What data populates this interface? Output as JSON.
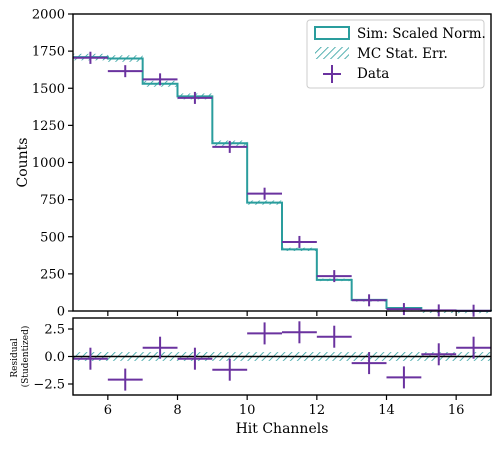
{
  "colors": {
    "sim": "#2a9d9d",
    "data": "#6a329f",
    "axis": "#000000",
    "background": "#ffffff"
  },
  "chart_data": [
    {
      "type": "histogram",
      "panel": "main",
      "ylabel": "Counts",
      "xlim": [
        5,
        17
      ],
      "ylim": [
        0,
        2000
      ],
      "y_ticks": [
        0,
        250,
        500,
        750,
        1000,
        1250,
        1500,
        1750,
        2000
      ],
      "legend_position": "top-right",
      "legend": [
        "Sim: Scaled Norm.",
        "MC Stat. Err.",
        "Data"
      ],
      "bin_edges": [
        5,
        6,
        7,
        8,
        9,
        10,
        11,
        12,
        13,
        14,
        15,
        16,
        17
      ],
      "series": [
        {
          "name": "Sim: Scaled Norm.",
          "style": "step",
          "values": [
            1710,
            1700,
            1530,
            1445,
            1130,
            730,
            415,
            210,
            75,
            20,
            3,
            1
          ],
          "mc_stat_err": [
            22,
            22,
            20,
            20,
            18,
            14,
            11,
            8,
            5,
            3,
            1,
            1
          ]
        },
        {
          "name": "Data",
          "style": "errorbar",
          "x": [
            5.5,
            6.5,
            7.5,
            8.5,
            9.5,
            10.5,
            11.5,
            12.5,
            13.5,
            14.5,
            15.5,
            16.5
          ],
          "y": [
            1705,
            1615,
            1560,
            1435,
            1105,
            790,
            465,
            235,
            72,
            13,
            4,
            2
          ],
          "xerr": 0.5,
          "yerr": [
            41,
            40,
            39,
            38,
            33,
            28,
            22,
            15,
            8,
            4,
            2,
            1.5
          ]
        }
      ]
    },
    {
      "type": "scatter",
      "panel": "residual",
      "xlabel": "Hit Channels",
      "ylabel": "Residual\n(Studentized)",
      "ylabel_lines": [
        "Residual",
        "(Studentized)"
      ],
      "xlim": [
        5,
        17
      ],
      "ylim": [
        -3.5,
        3.5
      ],
      "x_ticks": [
        6,
        8,
        10,
        12,
        14,
        16
      ],
      "y_ticks": [
        -2.5,
        0.0,
        2.5
      ],
      "y_tick_labels": [
        "−2.5",
        "0.0",
        "2.5"
      ],
      "mc_band": [
        -0.4,
        0.4
      ],
      "series": [
        {
          "name": "Data",
          "x": [
            5.5,
            6.5,
            7.5,
            8.5,
            9.5,
            10.5,
            11.5,
            12.5,
            13.5,
            14.5,
            15.5,
            16.5
          ],
          "y": [
            -0.2,
            -2.1,
            0.8,
            -0.2,
            -1.2,
            2.1,
            2.2,
            1.8,
            -0.6,
            -1.9,
            0.2,
            0.8
          ],
          "xerr": 0.5,
          "yerr": 1
        }
      ]
    }
  ]
}
